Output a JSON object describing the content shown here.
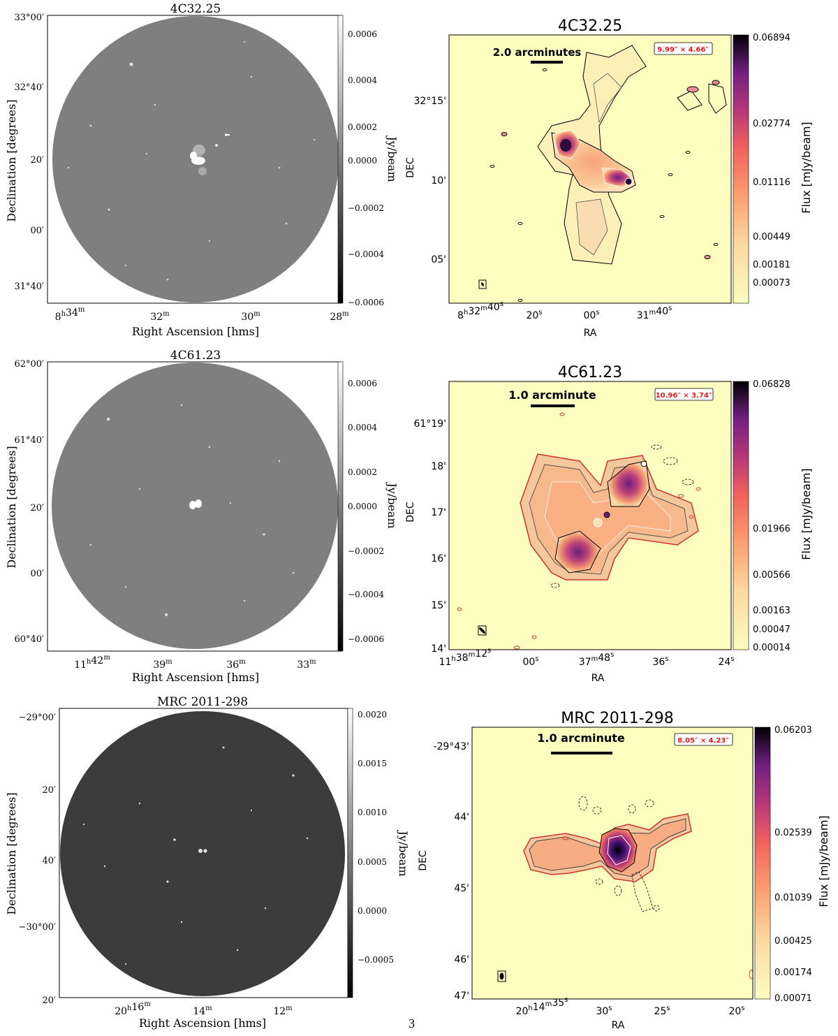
{
  "page_number": "3",
  "left_panels": [
    {
      "title": "4C32.25",
      "xlabel": "Right Ascension [hms]",
      "ylabel": "Declination [degrees]",
      "cbar_label": "Jy/beam",
      "bg": "#7f7f7f",
      "yticks": [
        "33°00′",
        "32°40′",
        "20′",
        "00′",
        "31°40′"
      ],
      "xticks": [
        {
          "h": "8",
          "hs": "h",
          "m": "34",
          "ms": "m"
        },
        {
          "h": "",
          "hs": "",
          "m": "32",
          "ms": "m"
        },
        {
          "h": "",
          "hs": "",
          "m": "30",
          "ms": "m"
        },
        {
          "h": "",
          "hs": "",
          "m": "28",
          "ms": "m"
        }
      ],
      "cbar_ticks": [
        "0.0006",
        "0.0004",
        "0.0002",
        "0.0000",
        "−0.0002",
        "−0.0004",
        "−0.0006"
      ]
    },
    {
      "title": "4C61.23",
      "xlabel": "Right Ascension [hms]",
      "ylabel": "Declination [degrees]",
      "cbar_label": "Jy/beam",
      "bg": "#7f7f7f",
      "yticks": [
        "62°00′",
        "61°40′",
        "20′",
        "00′",
        "60°40′"
      ],
      "xticks": [
        {
          "h": "11",
          "hs": "h",
          "m": "42",
          "ms": "m"
        },
        {
          "h": "",
          "hs": "",
          "m": "39",
          "ms": "m"
        },
        {
          "h": "",
          "hs": "",
          "m": "36",
          "ms": "m"
        },
        {
          "h": "",
          "hs": "",
          "m": "33",
          "ms": "m"
        }
      ],
      "cbar_ticks": [
        "0.0006",
        "0.0004",
        "0.0002",
        "0.0000",
        "−0.0002",
        "−0.0004",
        "−0.0006"
      ]
    },
    {
      "title": "MRC 2011-298",
      "xlabel": "Right Ascension [hms]",
      "ylabel": "Declination [degrees]",
      "cbar_label": "Jy/beam",
      "bg": "#3c3c3c",
      "yticks": [
        "−29°00′",
        "20′",
        "40′",
        "−30°00′",
        "20′"
      ],
      "xticks": [
        {
          "h": "20",
          "hs": "h",
          "m": "16",
          "ms": "m"
        },
        {
          "h": "",
          "hs": "",
          "m": "14",
          "ms": "m"
        },
        {
          "h": "",
          "hs": "",
          "m": "12",
          "ms": "m"
        }
      ],
      "cbar_ticks": [
        "0.0020",
        "0.0015",
        "0.0010",
        "0.0005",
        "0.0000",
        "−0.0005"
      ]
    }
  ],
  "right_panels": [
    {
      "title": "4C32.25",
      "scalebar": "2.0 arcminutes",
      "beam": "9.99″ × 4.66″",
      "xlabel": "RA",
      "ylabel": "DEC",
      "cbar_label": "Flux [mJy/beam]",
      "yticks": [
        "32°15'",
        "10'",
        "05'"
      ],
      "xticks": [
        {
          "a": "8",
          "as": "h",
          "b": "32",
          "bs": "m",
          "c": "40",
          "cs": "s"
        },
        {
          "a": "",
          "as": "",
          "b": "",
          "bs": "",
          "c": "20",
          "cs": "s"
        },
        {
          "a": "",
          "as": "",
          "b": "",
          "bs": "",
          "c": "00",
          "cs": "s"
        },
        {
          "a": "",
          "as": "",
          "b": "31",
          "bs": "m",
          "c": "40",
          "cs": "s"
        }
      ],
      "cbar_ticks": [
        "0.06894",
        "0.02774",
        "0.01116",
        "0.00449",
        "0.00181",
        "0.00073"
      ]
    },
    {
      "title": "4C61.23",
      "scalebar": "1.0 arcminute",
      "beam": "10.96″ × 3.74″",
      "xlabel": "RA",
      "ylabel": "DEC",
      "cbar_label": "Flux [mJy/beam]",
      "yticks": [
        "61°19'",
        "18'",
        "17'",
        "16'",
        "15'",
        "14'"
      ],
      "xticks": [
        {
          "a": "11",
          "as": "h",
          "b": "38",
          "bs": "m",
          "c": "12",
          "cs": "s"
        },
        {
          "a": "",
          "as": "",
          "b": "",
          "bs": "",
          "c": "00",
          "cs": "s"
        },
        {
          "a": "",
          "as": "",
          "b": "37",
          "bs": "m",
          "c": "48",
          "cs": "s"
        },
        {
          "a": "",
          "as": "",
          "b": "",
          "bs": "",
          "c": "36",
          "cs": "s"
        },
        {
          "a": "",
          "as": "",
          "b": "",
          "bs": "",
          "c": "24",
          "cs": "s"
        }
      ],
      "cbar_ticks": [
        "0.06828",
        "0.01966",
        "0.00566",
        "0.00163",
        "0.00047",
        "0.00014"
      ]
    },
    {
      "title": "MRC 2011-298",
      "scalebar": "1.0 arcminute",
      "beam": "8.05″ × 4.23″",
      "xlabel": "RA",
      "ylabel": "DEC",
      "cbar_label": "Flux [mJy/beam]",
      "yticks": [
        "-29°43'",
        "44'",
        "45'",
        "46'",
        "47'"
      ],
      "xticks": [
        {
          "a": "20",
          "as": "h",
          "b": "14",
          "bs": "m",
          "c": "35",
          "cs": "s"
        },
        {
          "a": "",
          "as": "",
          "b": "",
          "bs": "",
          "c": "30",
          "cs": "s"
        },
        {
          "a": "",
          "as": "",
          "b": "",
          "bs": "",
          "c": "25",
          "cs": "s"
        },
        {
          "a": "",
          "as": "",
          "b": "",
          "bs": "",
          "c": "20",
          "cs": "s"
        }
      ],
      "cbar_ticks": [
        "0.06203",
        "0.02539",
        "0.01039",
        "0.00425",
        "0.00174",
        "0.00071"
      ]
    }
  ]
}
